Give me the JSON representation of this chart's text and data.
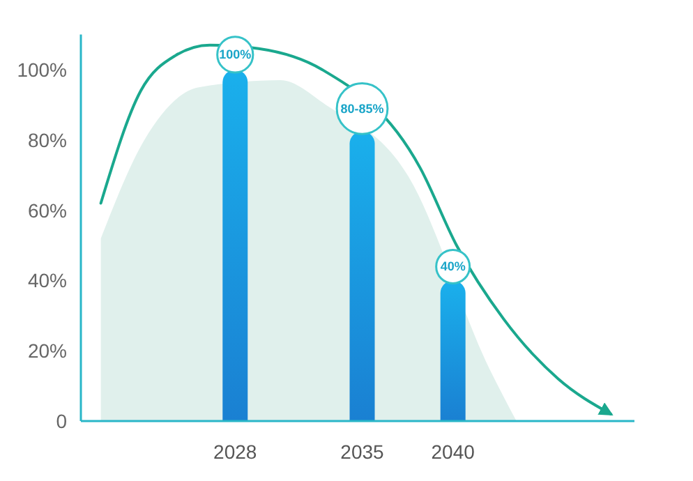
{
  "chart_data": {
    "type": "bar",
    "x": [
      2028,
      2035,
      2040
    ],
    "xlim": [
      2019.5,
      2050
    ],
    "xticks": [
      2028,
      2035,
      2040
    ],
    "ylim": [
      0,
      110
    ],
    "yticks": [
      {
        "value": 0,
        "label": "0"
      },
      {
        "value": 20,
        "label": "20%"
      },
      {
        "value": 40,
        "label": "40%"
      },
      {
        "value": 60,
        "label": "60%"
      },
      {
        "value": 80,
        "label": "80%"
      },
      {
        "value": 100,
        "label": "100%"
      }
    ],
    "grid": false,
    "annotations": [
      {
        "text": "80-85%",
        "x": 2035,
        "y": 82.5
      }
    ],
    "series": [
      {
        "type": "area",
        "color": "#e0f0ec",
        "x": [
          2020.6,
          2023,
          2026,
          2030.5,
          2033,
          2037.5,
          2042,
          2043.5
        ],
        "values": [
          52,
          80,
          95,
          97,
          90,
          70,
          15,
          0
        ]
      },
      {
        "color": "#1a80d2",
        "values": [
          100,
          82.5,
          40
        ],
        "value_labels": [
          "100%",
          null,
          "40%"
        ]
      },
      {
        "type": "line",
        "color": "#1aa88e",
        "marker": "none",
        "line_style": "solid",
        "x": [
          2020.6,
          2022.8,
          2024.7,
          2026.6,
          2029.3,
          2032.8,
          2035.2,
          2038.2,
          2040.2,
          2042.8,
          2045.8,
          2048.7
        ],
        "values": [
          62,
          94,
          104,
          107,
          106,
          100,
          null,
          72,
          50,
          29,
          12,
          2
        ]
      }
    ]
  }
}
